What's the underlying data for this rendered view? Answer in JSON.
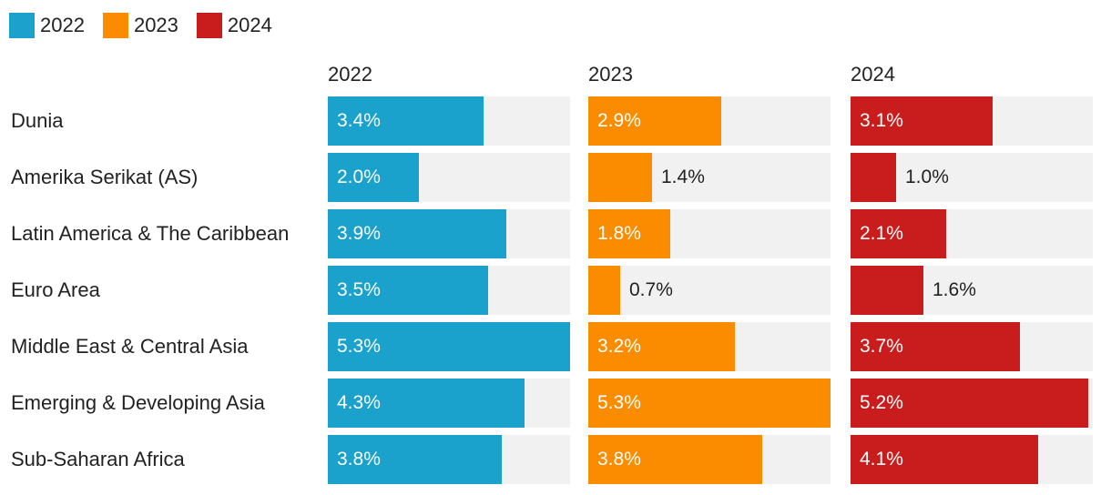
{
  "chart_data": {
    "type": "bar",
    "orientation": "horizontal",
    "layout": "small-multiples",
    "legend": {
      "position": "top-left",
      "entries": [
        "2022",
        "2023",
        "2024"
      ]
    },
    "categories": [
      "Dunia",
      "Amerika Serikat (AS)",
      "Latin America & The Caribbean",
      "Euro Area",
      "Middle East & Central Asia",
      "Emerging & Developing Asia",
      "Sub-Saharan Africa"
    ],
    "series": [
      {
        "name": "2022",
        "color": "#1aa1cc",
        "values": [
          3.4,
          2.0,
          3.9,
          3.5,
          5.3,
          4.3,
          3.8
        ],
        "labels": [
          "3.4%",
          "2.0%",
          "3.9%",
          "3.5%",
          "5.3%",
          "4.3%",
          "3.8%"
        ]
      },
      {
        "name": "2023",
        "color": "#fb8c00",
        "values": [
          2.9,
          1.4,
          1.8,
          0.7,
          3.2,
          5.3,
          3.8
        ],
        "labels": [
          "2.9%",
          "1.4%",
          "1.8%",
          "0.7%",
          "3.2%",
          "5.3%",
          "3.8%"
        ]
      },
      {
        "name": "2024",
        "color": "#c91d1d",
        "values": [
          3.1,
          1.0,
          2.1,
          1.6,
          3.7,
          5.2,
          4.1
        ],
        "labels": [
          "3.1%",
          "1.0%",
          "2.1%",
          "1.6%",
          "3.7%",
          "5.2%",
          "4.1%"
        ]
      }
    ],
    "xlim": [
      0,
      5.3
    ],
    "grid": false
  }
}
